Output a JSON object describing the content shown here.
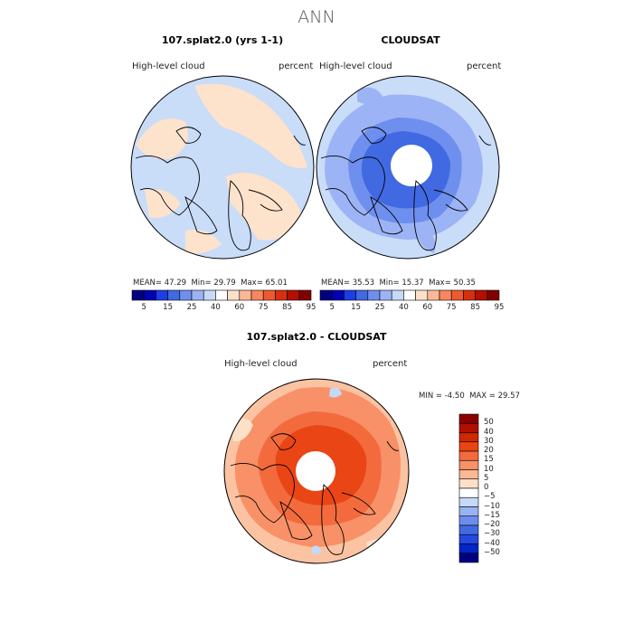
{
  "page": {
    "title": "ANN"
  },
  "panels": [
    {
      "title": "107.splat2.0 (yrs 1-1)",
      "variable": "High-level cloud",
      "units": "percent",
      "stats": {
        "mean_label": "MEAN=",
        "mean": "47.29",
        "min_label": "Min=",
        "min": "29.79",
        "max_label": "Max=",
        "max": "65.01"
      }
    },
    {
      "title": "CLOUDSAT",
      "variable": "High-level cloud",
      "units": "percent",
      "stats": {
        "mean_label": "MEAN=",
        "mean": "35.53",
        "min_label": "Min=",
        "min": "15.37",
        "max_label": "Max=",
        "max": "50.35"
      }
    },
    {
      "title": "107.splat2.0 - CLOUDSAT",
      "variable": "High-level cloud",
      "units": "percent",
      "stats": {
        "min_label": "MIN =",
        "min": "-4.50",
        "max_label": "MAX =",
        "max": "29.57"
      }
    }
  ],
  "colorbar_top": {
    "ticks": [
      "5",
      "15",
      "25",
      "40",
      "60",
      "75",
      "85",
      "95"
    ],
    "colors": [
      "#000080",
      "#0000b4",
      "#1c3ee6",
      "#4169e1",
      "#6f8fee",
      "#9cb4f5",
      "#c7d9f9",
      "#ffffff",
      "#fde0c8",
      "#fbb896",
      "#f6875f",
      "#ee5a2f",
      "#d73010",
      "#b40f00",
      "#800000"
    ]
  },
  "colorbar_diff": {
    "ticks": [
      "50",
      "40",
      "30",
      "20",
      "15",
      "10",
      "5",
      "0",
      "−5",
      "−10",
      "−15",
      "−20",
      "−30",
      "−40",
      "−50"
    ],
    "colors": [
      "#8b0000",
      "#b01000",
      "#d02800",
      "#ea4515",
      "#f36b3d",
      "#f89068",
      "#fbb894",
      "#fde0c8",
      "#ffffff",
      "#c4d8f8",
      "#99b2f4",
      "#6d8dee",
      "#4169e1",
      "#2548e0",
      "#0025c8",
      "#000080"
    ]
  },
  "chart_data": [
    {
      "type": "heatmap",
      "title": "107.splat2.0 (yrs 1-1)",
      "projection": "north polar stereographic",
      "variable": "High-level cloud",
      "units": "percent",
      "mean": 47.29,
      "min": 29.79,
      "max": 65.01,
      "levels": [
        5,
        15,
        25,
        40,
        60,
        75,
        85,
        95
      ],
      "description_colors": [
        "#c7d9f9",
        "#fde0c8"
      ]
    },
    {
      "type": "heatmap",
      "title": "CLOUDSAT",
      "projection": "north polar stereographic",
      "variable": "High-level cloud",
      "units": "percent",
      "mean": 35.53,
      "min": 15.37,
      "max": 50.35,
      "levels": [
        5,
        15,
        25,
        40,
        60,
        75,
        85,
        95
      ]
    },
    {
      "type": "heatmap",
      "title": "107.splat2.0 - CLOUDSAT",
      "projection": "north polar stereographic",
      "variable": "High-level cloud",
      "units": "percent",
      "min": -4.5,
      "max": 29.57,
      "levels": [
        -50,
        -40,
        -30,
        -20,
        -15,
        -10,
        -5,
        0,
        5,
        10,
        15,
        20,
        30,
        40,
        50
      ]
    }
  ]
}
